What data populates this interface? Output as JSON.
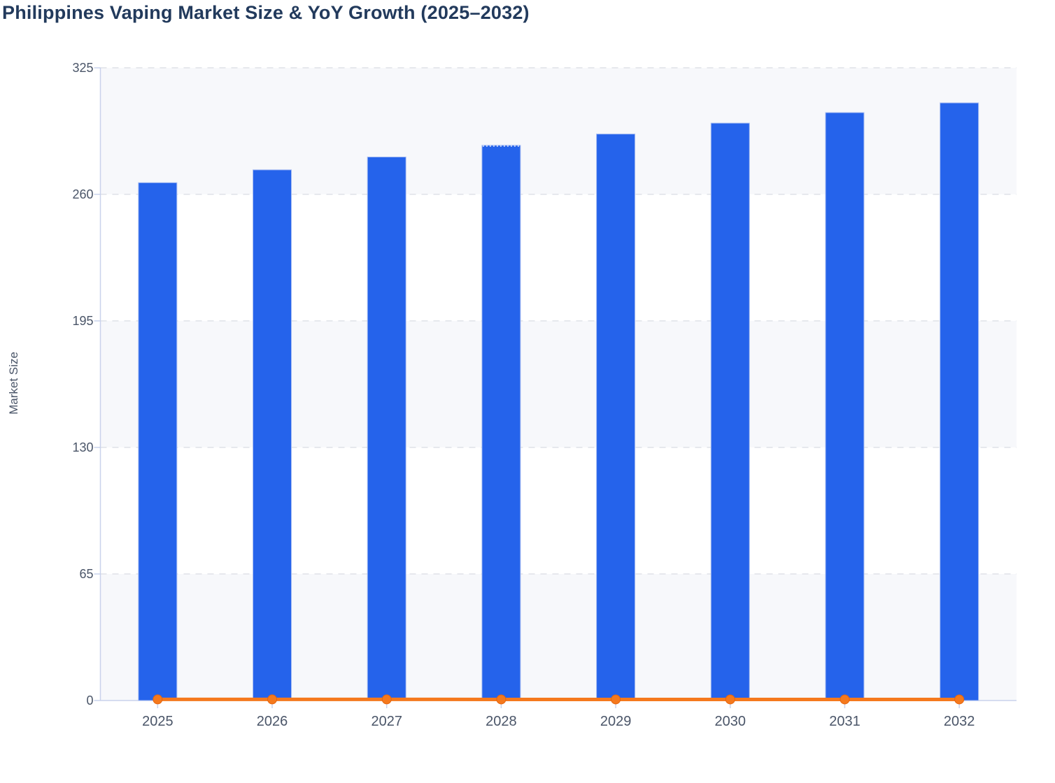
{
  "chart_data": {
    "type": "combo",
    "title": "Philippines Vaping Market Size & YoY Growth (2025–2032)",
    "ylabel": "Market Size",
    "xlabel": "",
    "categories": [
      "2025",
      "2026",
      "2027",
      "2028",
      "2029",
      "2030",
      "2031",
      "2032"
    ],
    "series": [
      {
        "name": "Market Size",
        "type": "bar",
        "color": "#2563eb",
        "values": [
          266,
          272.6,
          279.2,
          285.2,
          291,
          296.6,
          302,
          307
        ]
      },
      {
        "name": "YoY Growth",
        "type": "line",
        "color": "#f5791d",
        "values_pct": [
          2.6,
          2.5,
          2.4,
          2.2,
          2.0,
          1.9,
          1.8,
          1.6
        ],
        "note": "plotted on the market-size axis, appears flat at ~0 along the baseline with round markers at each year"
      }
    ],
    "ylim": [
      0,
      325
    ],
    "yticks": [
      0,
      65,
      130,
      195,
      260,
      325
    ],
    "grid": "dashed horizontal gridlines with alternating horizontal background bands",
    "legend": "none",
    "highlight": {
      "dotted_top_bar_index": 3
    }
  },
  "colors": {
    "title_text": "#223a5c",
    "axis_label_text": "#4a5568",
    "bar_fill": "#2563eb",
    "bar_border": "#aabff2",
    "bar_dotted_top": "#ccd9f8",
    "line": "#f5791d",
    "marker_fill": "#f5791d",
    "marker_stroke": "#e4650f",
    "gridline": "#e6e8ed",
    "axis_line": "#c9d2ec",
    "band_gray": "#f7f8fb",
    "band_white": "#ffffff",
    "background": "#ffffff"
  }
}
